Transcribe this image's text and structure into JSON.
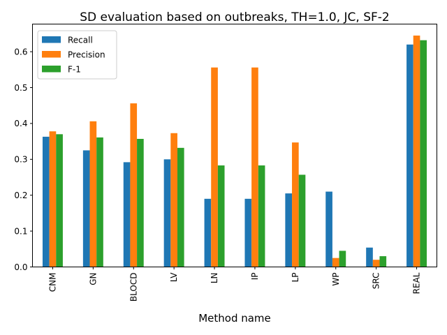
{
  "chart_data": {
    "type": "bar",
    "title": "SD evaluation based on outbreaks, TH=1.0, JC, SF-2",
    "xlabel": "Method name",
    "ylabel": "",
    "categories": [
      "CNM",
      "GN",
      "BLOCD",
      "LV",
      "LN",
      "IP",
      "LP",
      "WP",
      "SRC",
      "REAL"
    ],
    "series": [
      {
        "name": "Recall",
        "color": "#1f77b4",
        "values": [
          0.363,
          0.325,
          0.292,
          0.3,
          0.19,
          0.19,
          0.205,
          0.21,
          0.054,
          0.62
        ]
      },
      {
        "name": "Precision",
        "color": "#ff7f0e",
        "values": [
          0.378,
          0.406,
          0.456,
          0.373,
          0.556,
          0.556,
          0.347,
          0.025,
          0.02,
          0.645
        ]
      },
      {
        "name": "F-1",
        "color": "#2ca02c",
        "values": [
          0.37,
          0.361,
          0.357,
          0.332,
          0.283,
          0.283,
          0.257,
          0.045,
          0.03,
          0.632
        ]
      }
    ],
    "ylim": [
      0,
      0.677
    ],
    "yticks": [
      "0.0",
      "0.1",
      "0.2",
      "0.3",
      "0.4",
      "0.5",
      "0.6"
    ],
    "grid": false,
    "legend_position": "top-left"
  }
}
